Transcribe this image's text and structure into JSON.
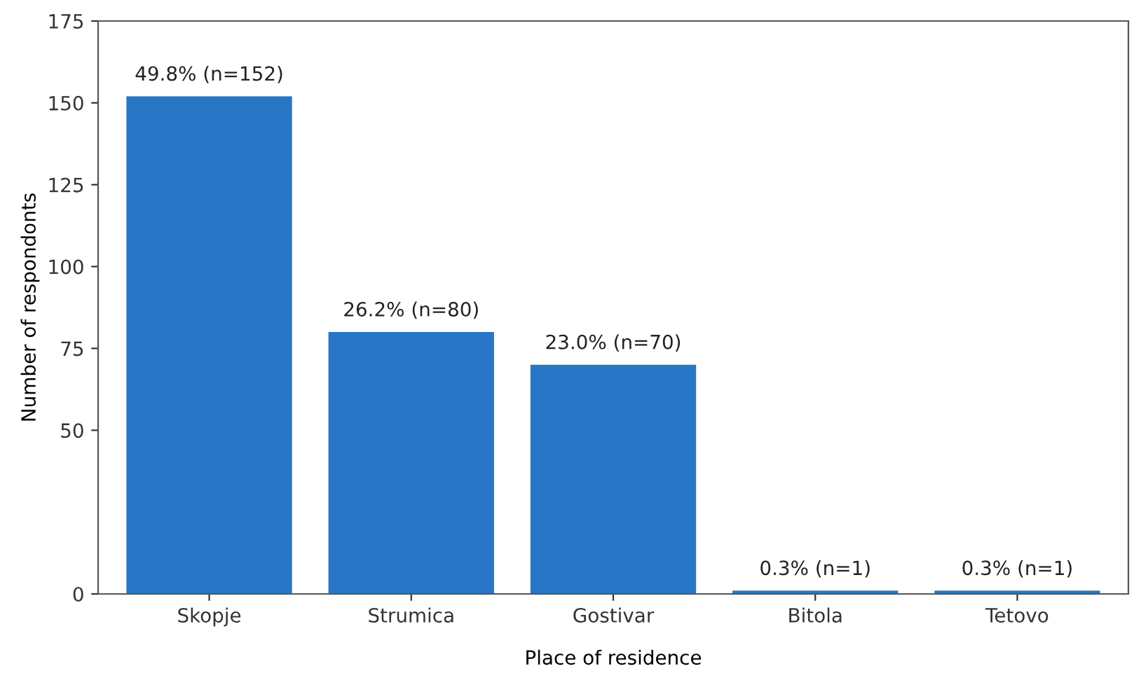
{
  "chart_data": {
    "type": "bar",
    "xlabel": "Place of residence",
    "ylabel": "Number of respondonts",
    "categories": [
      "Skopje",
      "Strumica",
      "Gostivar",
      "Bitola",
      "Tetovo"
    ],
    "values": [
      152,
      80,
      70,
      1,
      1
    ],
    "value_labels": [
      "49.8% (n=152)",
      "26.2% (n=80)",
      "23.0% (n=70)",
      "0.3% (n=1)",
      "0.3% (n=1)"
    ],
    "color": "#2877c6",
    "ylim": [
      0,
      175
    ],
    "yticks": [
      0,
      50,
      75,
      100,
      125,
      150,
      175
    ],
    "grid": false
  }
}
